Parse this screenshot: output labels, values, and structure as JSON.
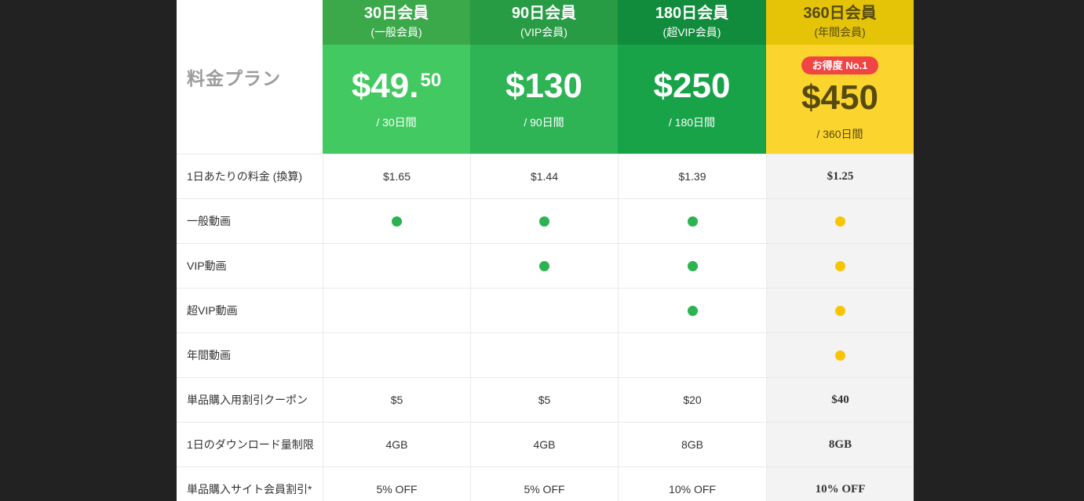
{
  "page": {
    "background": "#222222"
  },
  "colors": {
    "border": "#e9e9e9",
    "table_bg": "#ffffff",
    "highlight_column_bg": "#f3f3f3",
    "dot_green": "#2bb351",
    "dot_yellow": "#f9c402",
    "label_text": "#333333",
    "corner_text": "#9c9c9c"
  },
  "table": {
    "corner_title": "料金プラン",
    "plans": [
      {
        "name": "30日会員",
        "sub": "(一般会員)",
        "price_main": "$49.",
        "price_sup": "50",
        "period": "/ 30日間",
        "header_bg": "#3ba94a",
        "body_bg": "#42c961",
        "text": "#ffffff"
      },
      {
        "name": "90日会員",
        "sub": "(VIP会員)",
        "price_main": "$130",
        "price_sup": "",
        "period": "/ 90日間",
        "header_bg": "#289b45",
        "body_bg": "#2eb355",
        "text": "#ffffff"
      },
      {
        "name": "180日会員",
        "sub": "(超VIP会員)",
        "price_main": "$250",
        "price_sup": "",
        "period": "/ 180日間",
        "header_bg": "#118c3c",
        "body_bg": "#18a348",
        "text": "#ffffff"
      },
      {
        "name": "360日会員",
        "sub": "(年間会員)",
        "price_main": "$450",
        "price_sup": "",
        "period": "/ 360日間",
        "header_bg": "#e5c407",
        "body_bg": "#fcd42e",
        "text": "#564a10",
        "badge": "お得度 No.1",
        "badge_bg": "#f04545",
        "badge_text": "#ffffff"
      }
    ],
    "rows": [
      {
        "label": "1日あたりの料金 (換算)",
        "values": [
          "$1.65",
          "$1.44",
          "$1.39",
          "$1.25"
        ]
      },
      {
        "label": "一般動画",
        "values": [
          "●",
          "●",
          "●",
          "●"
        ]
      },
      {
        "label": "VIP動画",
        "values": [
          "",
          "●",
          "●",
          "●"
        ]
      },
      {
        "label": "超VIP動画",
        "values": [
          "",
          "",
          "●",
          "●"
        ]
      },
      {
        "label": "年間動画",
        "values": [
          "",
          "",
          "",
          "●"
        ]
      },
      {
        "label": "単品購入用割引クーポン",
        "values": [
          "$5",
          "$5",
          "$20",
          "$40"
        ]
      },
      {
        "label": "1日のダウンロード量制限",
        "values": [
          "4GB",
          "4GB",
          "8GB",
          "8GB"
        ]
      },
      {
        "label": "単品購入サイト会員割引*",
        "values": [
          "5% OFF",
          "5% OFF",
          "10% OFF",
          "10% OFF"
        ]
      }
    ]
  }
}
